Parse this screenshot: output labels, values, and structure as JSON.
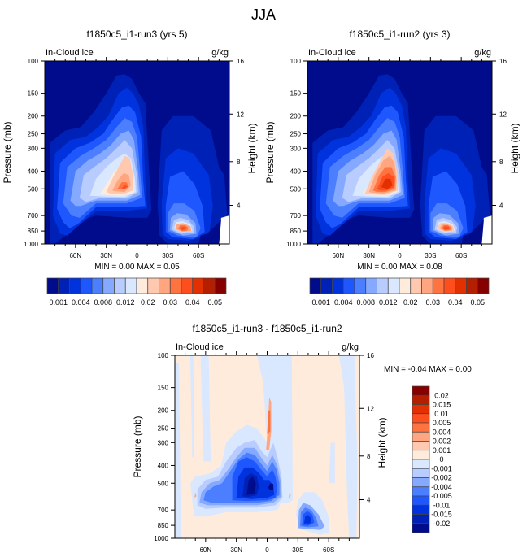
{
  "title": "JJA",
  "chart_data": [
    {
      "type": "heatmap",
      "id": "run3",
      "title": "f1850c5_i1-run3 (yrs 5)",
      "left_label": "In-Cloud ice",
      "right_label": "g/kg",
      "ylabel": "Pressure (mb)",
      "ylabel_right": "Height (km)",
      "xticks": [
        "60N",
        "30N",
        "0",
        "30S",
        "60S"
      ],
      "xtick_values": [
        60,
        30,
        0,
        -30,
        -60
      ],
      "xlim": [
        90,
        -90
      ],
      "yticks": [
        "100",
        "150",
        "200",
        "250",
        "300",
        "400",
        "500",
        "700",
        "850",
        "1000"
      ],
      "ytick_values": [
        100,
        150,
        200,
        250,
        300,
        400,
        500,
        700,
        850,
        1000
      ],
      "ylim": [
        100,
        1000
      ],
      "yticks_right": [
        "16",
        "12",
        "8",
        "4"
      ],
      "stats": "MIN =   0.00  MAX =   0.05",
      "min": 0.0,
      "max": 0.05,
      "colorbar": {
        "orientation": "horizontal",
        "labels": [
          "0.001",
          "0.004",
          "0.008",
          "0.012",
          "0.02",
          "0.03",
          "0.04",
          "0.05"
        ],
        "colors": [
          "#000C8C",
          "#0021B5",
          "#0033DD",
          "#1F57FF",
          "#4C7FFF",
          "#85A9FF",
          "#B8CCFF",
          "#D9E8FF",
          "#FFEBDB",
          "#FFC8AF",
          "#FFA57F",
          "#FF7340",
          "#FF4E1D",
          "#E33000",
          "#B41F00",
          "#870000"
        ]
      }
    },
    {
      "type": "heatmap",
      "id": "run2",
      "title": "f1850c5_i1-run2 (yrs 3)",
      "left_label": "In-Cloud ice",
      "right_label": "g/kg",
      "ylabel": "Pressure (mb)",
      "ylabel_right": "Height (km)",
      "xticks": [
        "60N",
        "30N",
        "0",
        "30S",
        "60S"
      ],
      "xtick_values": [
        60,
        30,
        0,
        -30,
        -60
      ],
      "xlim": [
        90,
        -90
      ],
      "yticks": [
        "100",
        "150",
        "200",
        "250",
        "300",
        "400",
        "500",
        "700",
        "850",
        "1000"
      ],
      "ytick_values": [
        100,
        150,
        200,
        250,
        300,
        400,
        500,
        700,
        850,
        1000
      ],
      "ylim": [
        100,
        1000
      ],
      "yticks_right": [
        "16",
        "12",
        "8",
        "4"
      ],
      "stats": "MIN =   0.00  MAX =   0.08",
      "min": 0.0,
      "max": 0.08,
      "colorbar": {
        "orientation": "horizontal",
        "labels": [
          "0.001",
          "0.004",
          "0.008",
          "0.012",
          "0.02",
          "0.03",
          "0.04",
          "0.05"
        ],
        "colors": [
          "#000C8C",
          "#0021B5",
          "#0033DD",
          "#1F57FF",
          "#4C7FFF",
          "#85A9FF",
          "#B8CCFF",
          "#D9E8FF",
          "#FFEBDB",
          "#FFC8AF",
          "#FFA57F",
          "#FF7340",
          "#FF4E1D",
          "#E33000",
          "#B41F00",
          "#870000"
        ]
      }
    },
    {
      "type": "heatmap",
      "id": "diff",
      "title": "f1850c5_i1-run3 - f1850c5_i1-run2",
      "left_label": "In-Cloud ice",
      "right_label": "g/kg",
      "ylabel": "Pressure (mb)",
      "ylabel_right": "Height (km)",
      "xticks": [
        "60N",
        "30N",
        "0",
        "30S",
        "60S"
      ],
      "xtick_values": [
        60,
        30,
        0,
        -30,
        -60
      ],
      "xlim": [
        90,
        -90
      ],
      "yticks": [
        "100",
        "150",
        "200",
        "250",
        "300",
        "400",
        "500",
        "700",
        "850",
        "1000"
      ],
      "ytick_values": [
        100,
        150,
        200,
        250,
        300,
        400,
        500,
        700,
        850,
        1000
      ],
      "ylim": [
        100,
        1000
      ],
      "yticks_right": [
        "16",
        "12",
        "8",
        "4"
      ],
      "stats": "MIN =  -0.04  MAX =   0.00",
      "min": -0.04,
      "max": 0.0,
      "colorbar": {
        "orientation": "vertical",
        "labels": [
          "0.02",
          "0.015",
          "0.01",
          "0.005",
          "0.004",
          "0.002",
          "0.001",
          "0",
          "-0.001",
          "-0.002",
          "-0.004",
          "-0.005",
          "-0.01",
          "-0.015",
          "-0.02"
        ],
        "colors": [
          "#870000",
          "#B41F00",
          "#E33000",
          "#FF4E1D",
          "#FF7340",
          "#FFA57F",
          "#FFC8AF",
          "#FFEBDB",
          "#D9E8FF",
          "#B8CCFF",
          "#85A9FF",
          "#4C7FFF",
          "#1F57FF",
          "#0033DD",
          "#0021B5",
          "#000C8C"
        ]
      }
    }
  ]
}
